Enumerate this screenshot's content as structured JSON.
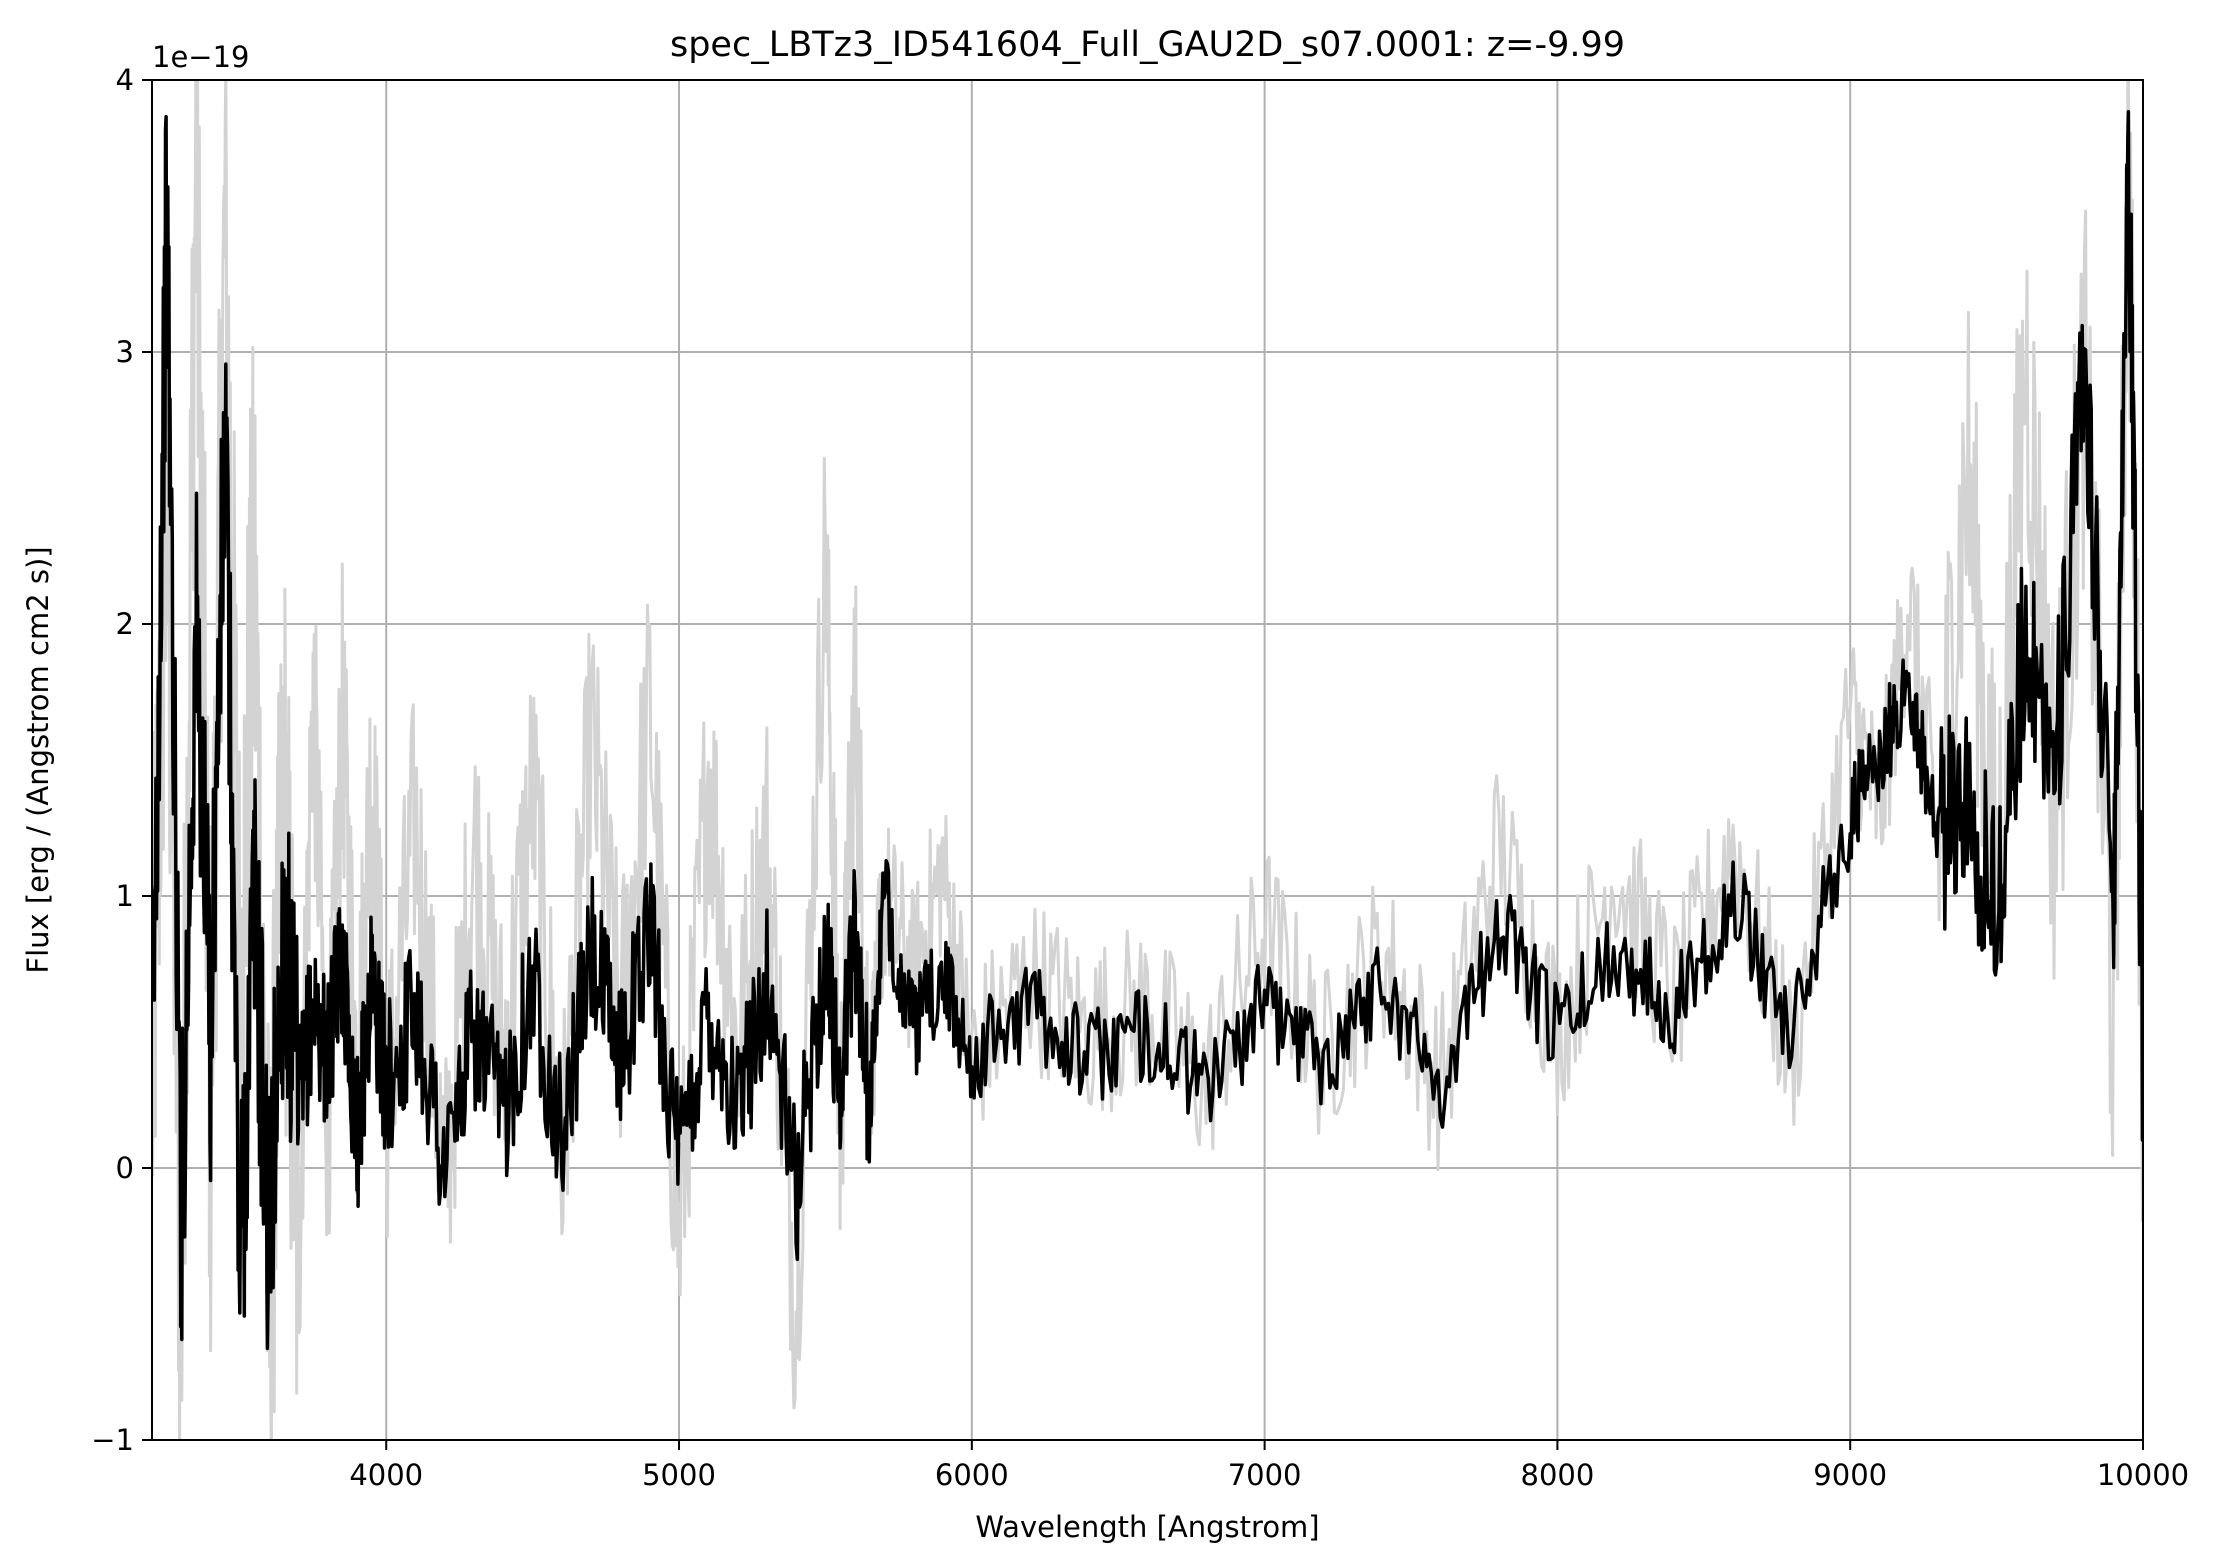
{
  "chart_data": {
    "type": "line",
    "title": "spec_LBTz3_ID541604_Full_GAU2D_s07.0001: z=-9.99",
    "xlabel": "Wavelength [Angstrom]",
    "ylabel": "Flux [erg / (Angstrom cm2 s)]",
    "y_offset_label": "1e−19",
    "xlim": [
      3200,
      10000
    ],
    "ylim": [
      -1,
      4
    ],
    "x_ticks": [
      4000,
      5000,
      6000,
      7000,
      8000,
      9000,
      10000
    ],
    "x_tick_labels": [
      "4000",
      "5000",
      "6000",
      "7000",
      "8000",
      "9000",
      "10000"
    ],
    "y_ticks": [
      -1,
      0,
      1,
      2,
      3,
      4
    ],
    "y_tick_labels": [
      "−1",
      "0",
      "1",
      "2",
      "3",
      "4"
    ],
    "grid": true,
    "series": [
      {
        "color": "#d3d3d3",
        "x": [
          3200,
          3250,
          3300,
          3350,
          3400,
          3450,
          3500,
          3550,
          3600,
          3650,
          3700,
          3750,
          3800,
          3850,
          3900,
          3950,
          4000,
          4100,
          4200,
          4300,
          4400,
          4500,
          4600,
          4700,
          4800,
          4900,
          5000,
          5100,
          5200,
          5300,
          5400,
          5500,
          5550,
          5600,
          5650,
          5700,
          5800,
          5900,
          6000,
          6200,
          6400,
          6600,
          6800,
          7000,
          7200,
          7400,
          7600,
          7800,
          8000,
          8200,
          8400,
          8600,
          8800,
          9000,
          9100,
          9200,
          9300,
          9400,
          9500,
          9600,
          9700,
          9800,
          9900,
          9950,
          10000
        ],
        "y": [
          0.3,
          2.5,
          -0.5,
          3.8,
          0.2,
          3.5,
          0.6,
          2.2,
          -0.6,
          1.4,
          -0.4,
          1.8,
          0.1,
          1.7,
          0.3,
          1.5,
          0.2,
          1.3,
          -0.1,
          1.2,
          0.4,
          1.4,
          0.0,
          1.6,
          0.5,
          1.7,
          -0.3,
          1.5,
          0.4,
          1.2,
          -0.5,
          2.3,
          0.1,
          1.8,
          0.3,
          1.0,
          0.7,
          1.1,
          0.4,
          0.7,
          0.5,
          0.6,
          0.3,
          0.9,
          0.4,
          0.8,
          0.3,
          1.2,
          0.5,
          1.1,
          0.6,
          1.2,
          0.4,
          1.7,
          1.3,
          2.1,
          1.2,
          2.6,
          1.0,
          3.0,
          1.3,
          2.9,
          0.5,
          3.8,
          0.4
        ]
      },
      {
        "color": "#000000",
        "x": [
          3200,
          3250,
          3300,
          3350,
          3400,
          3450,
          3500,
          3550,
          3600,
          3650,
          3700,
          3750,
          3800,
          3850,
          3900,
          3950,
          4000,
          4100,
          4200,
          4300,
          4400,
          4500,
          4600,
          4700,
          4800,
          4900,
          5000,
          5100,
          5200,
          5300,
          5400,
          5500,
          5550,
          5600,
          5650,
          5700,
          5800,
          5900,
          6000,
          6200,
          6400,
          6600,
          6800,
          7000,
          7200,
          7400,
          7600,
          7800,
          8000,
          8200,
          8400,
          8600,
          8800,
          9000,
          9100,
          9200,
          9300,
          9400,
          9500,
          9600,
          9700,
          9800,
          9900,
          9950,
          10000
        ],
        "y": [
          0.3,
          3.5,
          -0.2,
          2.0,
          0.5,
          2.7,
          -0.4,
          1.0,
          -0.3,
          0.9,
          0.2,
          0.6,
          0.4,
          0.8,
          0.1,
          0.7,
          0.3,
          0.6,
          0.0,
          0.5,
          0.2,
          0.7,
          0.1,
          0.8,
          0.4,
          0.9,
          0.0,
          0.6,
          0.2,
          0.7,
          -0.1,
          0.8,
          0.3,
          0.9,
          0.2,
          1.0,
          0.5,
          0.7,
          0.4,
          0.6,
          0.4,
          0.5,
          0.3,
          0.6,
          0.4,
          0.7,
          0.3,
          0.9,
          0.5,
          0.8,
          0.6,
          1.0,
          0.5,
          1.3,
          1.5,
          1.8,
          1.2,
          1.4,
          0.9,
          2.0,
          1.5,
          2.9,
          1.0,
          3.8,
          0.3
        ]
      }
    ]
  }
}
